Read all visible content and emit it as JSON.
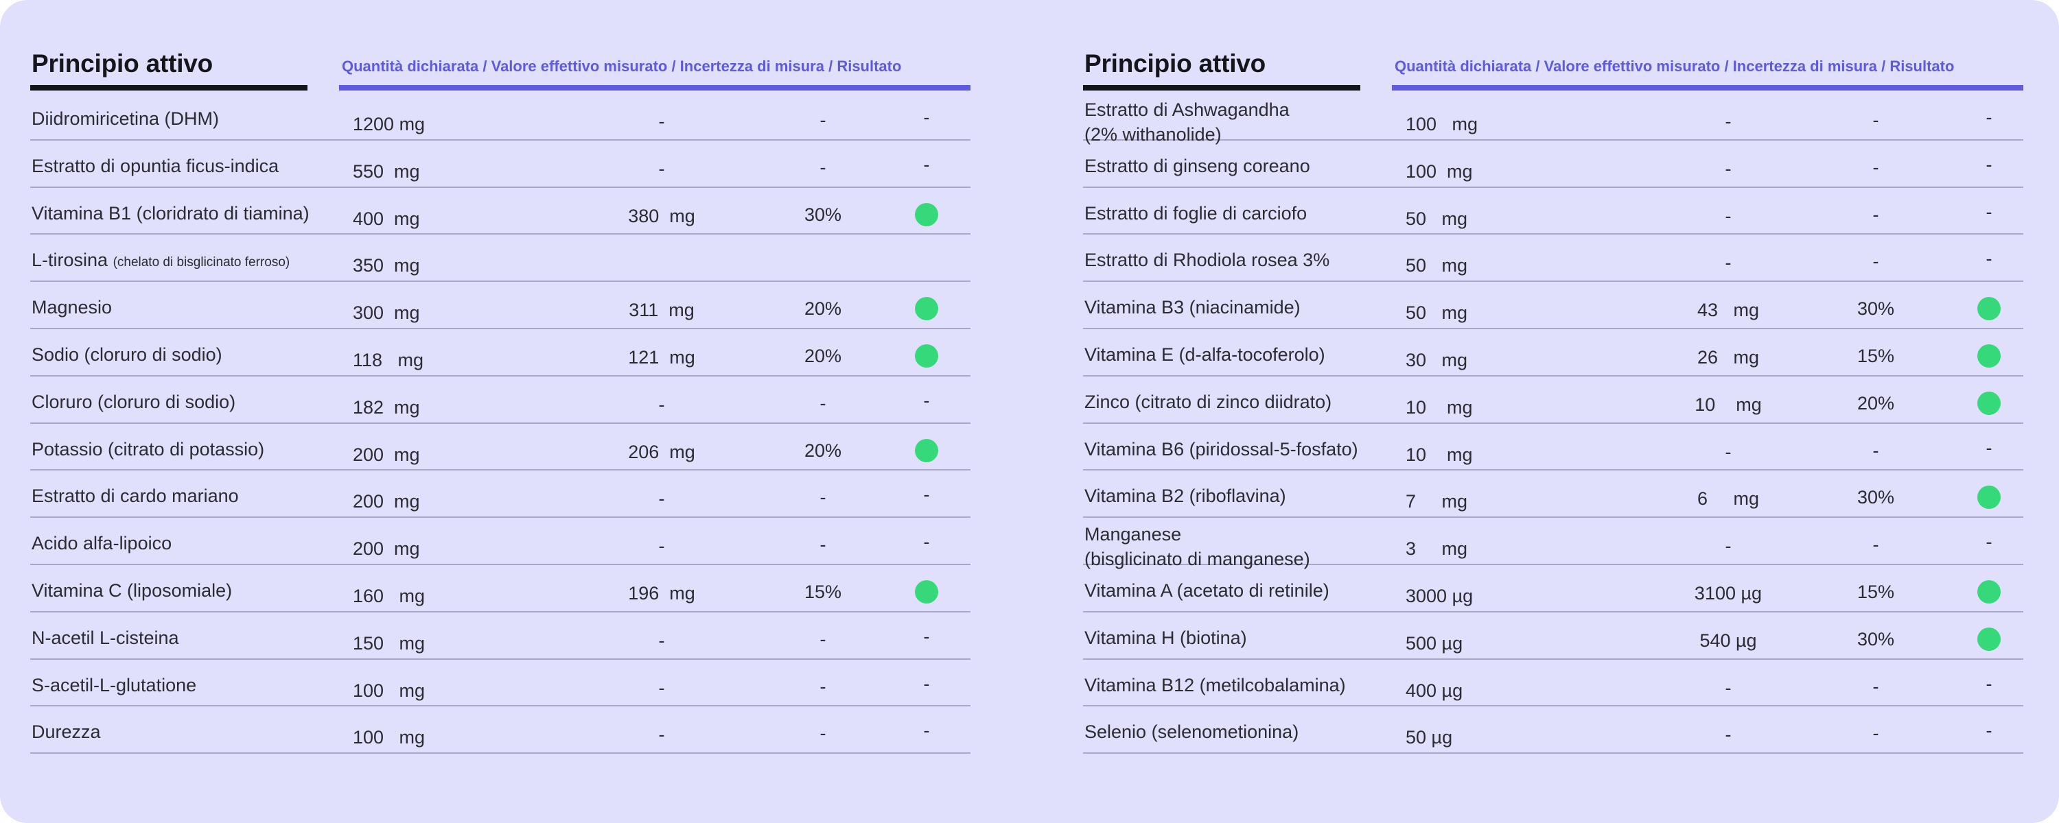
{
  "colors": {
    "background": "#e0dffc",
    "accent": "#5f5bdc",
    "text": "#2b2b33",
    "ok": "#36d97a",
    "rule": "#a9a8c9"
  },
  "header": {
    "title": "Principio attivo",
    "columns": "Quantità dichiarata / Valore effettivo misurato / Incertezza di misura / Risultato"
  },
  "left_rows": [
    {
      "name": "Diidromiricetina (DHM)",
      "qty": "1200 mg",
      "measured": "-",
      "uncertainty": "-",
      "result": "-"
    },
    {
      "name": "Estratto di opuntia ficus-indica",
      "qty": "550  mg",
      "measured": "-",
      "uncertainty": "-",
      "result": "-"
    },
    {
      "name": "Vitamina B1 (cloridrato di tiamina)",
      "qty": "400  mg",
      "measured": "380  mg",
      "uncertainty": "30%",
      "result": "ok"
    },
    {
      "name": "L-tirosina",
      "note": "(chelato di bisglicinato ferroso)",
      "qty": "350  mg",
      "measured": "",
      "uncertainty": "",
      "result": ""
    },
    {
      "name": "Magnesio",
      "qty": "300  mg",
      "measured": "311  mg",
      "uncertainty": "20%",
      "result": "ok"
    },
    {
      "name": "Sodio (cloruro di sodio)",
      "qty": "118   mg",
      "measured": "121  mg",
      "uncertainty": "20%",
      "result": "ok"
    },
    {
      "name": "Cloruro (cloruro di sodio)",
      "qty": "182  mg",
      "measured": "-",
      "uncertainty": "-",
      "result": "-"
    },
    {
      "name": "Potassio (citrato di potassio)",
      "qty": "200  mg",
      "measured": "206  mg",
      "uncertainty": "20%",
      "result": "ok"
    },
    {
      "name": "Estratto di cardo mariano",
      "qty": "200  mg",
      "measured": "-",
      "uncertainty": "-",
      "result": "-"
    },
    {
      "name": "Acido alfa-lipoico",
      "qty": "200  mg",
      "measured": "-",
      "uncertainty": "-",
      "result": "-"
    },
    {
      "name": "Vitamina C (liposomiale)",
      "qty": "160   mg",
      "measured": "196  mg",
      "uncertainty": "15%",
      "result": "ok"
    },
    {
      "name": "N-acetil L-cisteina",
      "qty": "150   mg",
      "measured": "-",
      "uncertainty": "-",
      "result": "-"
    },
    {
      "name": "S-acetil-L-glutatione",
      "qty": "100   mg",
      "measured": "-",
      "uncertainty": "-",
      "result": "-"
    },
    {
      "name": "Durezza",
      "qty": "100   mg",
      "measured": "-",
      "uncertainty": "-",
      "result": "-"
    }
  ],
  "right_rows": [
    {
      "name": "Estratto di Ashwagandha",
      "name2": "(2% withanolide)",
      "qty": "100   mg",
      "measured": "-",
      "uncertainty": "-",
      "result": "-"
    },
    {
      "name": "Estratto di ginseng coreano",
      "qty": "100  mg",
      "measured": "-",
      "uncertainty": "-",
      "result": "-"
    },
    {
      "name": "Estratto di foglie di carciofo",
      "qty": "50   mg",
      "measured": "-",
      "uncertainty": "-",
      "result": "-"
    },
    {
      "name": "Estratto di Rhodiola rosea 3%",
      "qty": "50   mg",
      "measured": "-",
      "uncertainty": "-",
      "result": "-"
    },
    {
      "name": "Vitamina B3 (niacinamide)",
      "qty": "50   mg",
      "measured": "43   mg",
      "uncertainty": "30%",
      "result": "ok"
    },
    {
      "name": "Vitamina E (d-alfa-tocoferolo)",
      "qty": "30   mg",
      "measured": "26   mg",
      "uncertainty": "15%",
      "result": "ok"
    },
    {
      "name": "Zinco (citrato di zinco diidrato)",
      "qty": "10    mg",
      "measured": "10    mg",
      "uncertainty": "20%",
      "result": "ok"
    },
    {
      "name": "Vitamina B6 (piridossal-5-fosfato)",
      "qty": "10    mg",
      "measured": "-",
      "uncertainty": "-",
      "result": "-"
    },
    {
      "name": "Vitamina B2 (riboflavina)",
      "qty": "7     mg",
      "measured": "6     mg",
      "uncertainty": "30%",
      "result": "ok"
    },
    {
      "name": "Manganese",
      "name2": "(bisglicinato di manganese)",
      "qty": "3     mg",
      "measured": "-",
      "uncertainty": "-",
      "result": "-"
    },
    {
      "name": "Vitamina A (acetato di retinile)",
      "qty": "3000 µg",
      "measured": "3100 µg",
      "uncertainty": "15%",
      "result": "ok"
    },
    {
      "name": "Vitamina H (biotina)",
      "qty": "500 µg",
      "measured": "540 µg",
      "uncertainty": "30%",
      "result": "ok"
    },
    {
      "name": "Vitamina B12 (metilcobalamina)",
      "qty": "400 µg",
      "measured": "-",
      "uncertainty": "-",
      "result": "-"
    },
    {
      "name": "Selenio (selenometionina)",
      "qty": "50 µg",
      "measured": "-",
      "uncertainty": "-",
      "result": "-"
    }
  ]
}
